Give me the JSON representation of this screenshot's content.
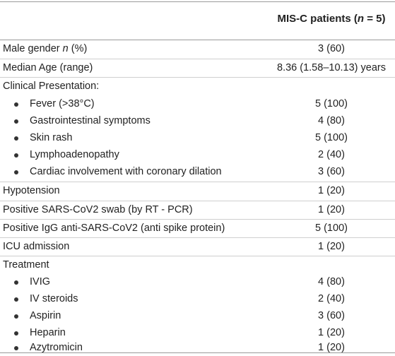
{
  "header": {
    "col_title_prefix": "MIS-C patients (",
    "col_title_n": "n",
    "col_title_suffix": " = 5)"
  },
  "rows": [
    {
      "label": "Male gender ",
      "label_italic": "n",
      "label_suffix": " (%)",
      "value": "3 (60)"
    },
    {
      "label": "Median Age (range)",
      "value": "8.36 (1.58–10.13) years"
    },
    {
      "label": "Clinical Presentation:",
      "value": ""
    },
    {
      "label": "Fever (>38°C)",
      "value": "5 (100)"
    },
    {
      "label": "Gastrointestinal symptoms",
      "value": "4 (80)"
    },
    {
      "label": "Skin rash",
      "value": "5 (100)"
    },
    {
      "label": "Lymphoadenopathy",
      "value": "2 (40)"
    },
    {
      "label": "Cardiac involvement with coronary dilation",
      "value": "3 (60)"
    },
    {
      "label": "Hypotension",
      "value": "1 (20)"
    },
    {
      "label": "Positive SARS-CoV2 swab (by RT - PCR)",
      "value": "1 (20)"
    },
    {
      "label": "Positive IgG anti-SARS-CoV2 (anti spike protein)",
      "value": "5 (100)"
    },
    {
      "label": "ICU admission",
      "value": "1 (20)"
    },
    {
      "label": "Treatment",
      "value": ""
    },
    {
      "label": "IVIG",
      "value": "4 (80)"
    },
    {
      "label": "IV steroids",
      "value": "2 (40)"
    },
    {
      "label": "Aspirin",
      "value": "3 (60)"
    },
    {
      "label": "Heparin",
      "value": "1 (20)"
    },
    {
      "label": "Azytromicin",
      "value": "1 (20)"
    }
  ]
}
